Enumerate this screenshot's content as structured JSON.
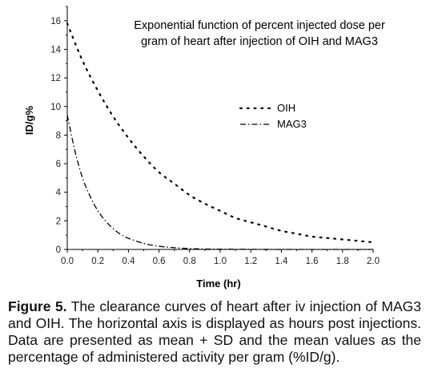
{
  "chart_data": {
    "type": "line",
    "title_lines": [
      "Exponential function of percent injected dose per",
      "gram of heart after injection of OIH and MAG3"
    ],
    "xlabel": "Time (hr)",
    "ylabel": "ID/g%",
    "xlim": [
      0,
      2.0
    ],
    "ylim": [
      0,
      17
    ],
    "xticks": [
      "0.0",
      "0.2",
      "0.4",
      "0.6",
      "0.8",
      "1.0",
      "1.2",
      "1.4",
      "1.6",
      "1.8",
      "2.0"
    ],
    "yticks": [
      "0",
      "2",
      "4",
      "6",
      "8",
      "10",
      "12",
      "14",
      "16"
    ],
    "legend_position": "center-right",
    "grid": false,
    "series": [
      {
        "name": "OIH",
        "style": "dotted",
        "x": [
          0.0,
          0.1,
          0.2,
          0.3,
          0.4,
          0.5,
          0.6,
          0.7,
          0.8,
          0.9,
          1.0,
          1.1,
          1.2,
          1.3,
          1.4,
          1.5,
          1.6,
          1.7,
          1.8,
          1.9,
          2.0
        ],
        "values": [
          15.8,
          13.2,
          11.1,
          9.3,
          7.8,
          6.5,
          5.4,
          4.6,
          3.8,
          3.2,
          2.7,
          2.2,
          1.9,
          1.6,
          1.3,
          1.1,
          0.9,
          0.8,
          0.7,
          0.6,
          0.5
        ]
      },
      {
        "name": "MAG3",
        "style": "dash-dot",
        "x": [
          0.0,
          0.05,
          0.1,
          0.15,
          0.2,
          0.25,
          0.3,
          0.35,
          0.4,
          0.5,
          0.6,
          0.7,
          0.8,
          0.9,
          1.0,
          1.2,
          1.4,
          1.6,
          1.8,
          2.0
        ],
        "values": [
          9.4,
          6.9,
          5.0,
          3.7,
          2.7,
          2.0,
          1.45,
          1.05,
          0.78,
          0.42,
          0.22,
          0.12,
          0.06,
          0.03,
          0.02,
          0.01,
          0.0,
          0.0,
          0.0,
          0.0
        ]
      }
    ]
  },
  "caption": {
    "label": "Figure 5.",
    "text": " The clearance curves of heart after iv injection of MAG3 and OIH. The horizontal axis is displayed as hours post injections. Data are presented as mean + SD and the mean values as the percentage of administered activity per gram (%ID/g)."
  }
}
